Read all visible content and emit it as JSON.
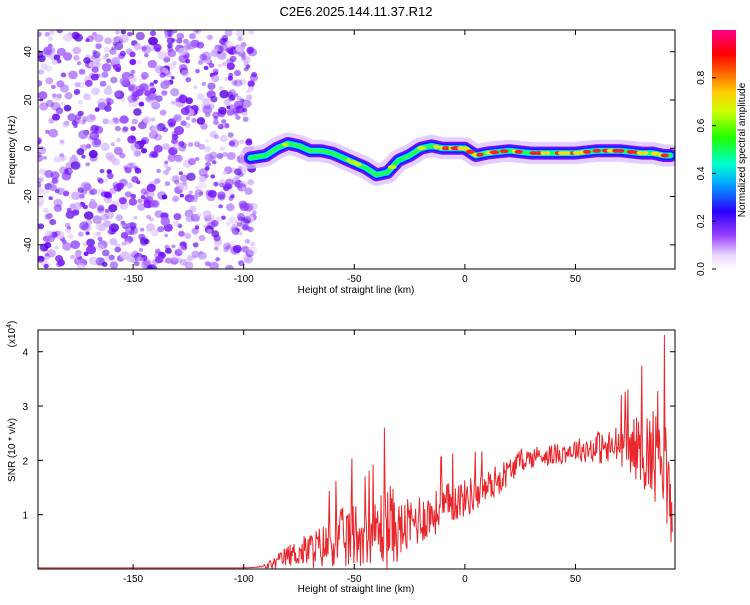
{
  "title": "C2E6.2025.144.11.37.R12",
  "colors": {
    "snr_line": "#e8262b",
    "scatter_purple": "#6a00ff",
    "scatter_light": "#c9a0ff",
    "colormap": [
      "#ffffff",
      "#e6ccff",
      "#8000ff",
      "#0000ff",
      "#00ffff",
      "#00ff00",
      "#ffff00",
      "#ff8000",
      "#ff0000",
      "#ff0080"
    ]
  },
  "chart_data": [
    {
      "type": "heatmap",
      "title": "C2E6.2025.144.11.37.R12",
      "xlabel": "Height of straight line (km)",
      "ylabel": "Frequency (Hz)",
      "xlim": [
        -193,
        95
      ],
      "ylim": [
        -50,
        49
      ],
      "x_ticks": [
        "-150",
        "-100",
        "-50",
        "0",
        "50"
      ],
      "y_ticks": [
        "40",
        "20",
        "0",
        "-20",
        "-40"
      ],
      "noise_region_x": [
        -193,
        -95
      ],
      "signal_track": {
        "x": [
          -97,
          -90,
          -85,
          -80,
          -75,
          -70,
          -65,
          -60,
          -55,
          -50,
          -45,
          -40,
          -35,
          -30,
          -25,
          -20,
          -15,
          -10,
          -5,
          0,
          5,
          10,
          20,
          30,
          40,
          50,
          60,
          70,
          80,
          85,
          90,
          93
        ],
        "y": [
          -4,
          -3,
          0,
          2,
          1,
          -1,
          -1,
          -2,
          -4,
          -6,
          -8,
          -11,
          -10,
          -5,
          -3,
          0,
          1,
          0,
          0,
          0,
          -3,
          -2,
          -1,
          -2,
          -2,
          -2,
          -1,
          -1,
          -2,
          -2,
          -3,
          -3
        ]
      },
      "colorbar": {
        "label": "Normalized spectral amplitude",
        "range": [
          0,
          1
        ],
        "ticks": [
          "0.0",
          "0.2",
          "0.4",
          "0.6",
          "0.8"
        ]
      }
    },
    {
      "type": "line",
      "xlabel": "Height of straight line (km)",
      "ylabel": "SNR (10 * v/v)",
      "y_exponent": "(x10",
      "y_exponent_power": "4",
      "y_exponent_close": ")",
      "xlim": [
        -193,
        95
      ],
      "ylim": [
        0,
        4.4
      ],
      "x_ticks": [
        "-150",
        "-100",
        "-50",
        "0",
        "50"
      ],
      "y_ticks": [
        "4",
        "3",
        "2",
        "1"
      ],
      "series": [
        {
          "x": [
            -193,
            -100,
            -95,
            -90,
            -85,
            -80,
            -75,
            -70,
            -65,
            -60,
            -55,
            -50,
            -45,
            -40,
            -35,
            -30,
            -25,
            -20,
            -15,
            -10,
            -5,
            0,
            5,
            10,
            15,
            20,
            25,
            30,
            35,
            40,
            45,
            50,
            55,
            60,
            65,
            70,
            75,
            80,
            85,
            88,
            90,
            92,
            94
          ],
          "values": [
            0.02,
            0.02,
            0.03,
            0.05,
            0.12,
            0.25,
            0.3,
            0.35,
            0.4,
            0.5,
            0.55,
            0.65,
            0.6,
            0.7,
            0.85,
            0.7,
            0.8,
            0.95,
            1.0,
            1.1,
            1.25,
            1.3,
            1.4,
            1.5,
            1.65,
            1.8,
            2.0,
            2.05,
            2.1,
            2.1,
            2.15,
            2.2,
            2.2,
            2.25,
            2.2,
            2.3,
            2.25,
            2.2,
            2.1,
            2.4,
            2.2,
            1.5,
            0.5
          ],
          "noise_amp": [
            0,
            0,
            0,
            0.05,
            0.15,
            0.2,
            0.25,
            0.35,
            0.4,
            0.45,
            0.6,
            0.65,
            0.5,
            0.6,
            0.9,
            0.55,
            0.5,
            0.5,
            0.4,
            0.45,
            0.4,
            0.35,
            0.35,
            0.3,
            0.3,
            0.25,
            0.2,
            0.2,
            0.2,
            0.2,
            0.2,
            0.2,
            0.25,
            0.3,
            0.35,
            0.4,
            0.5,
            0.7,
            0.9,
            1.1,
            1.0,
            0.9,
            0.4
          ]
        }
      ]
    }
  ]
}
